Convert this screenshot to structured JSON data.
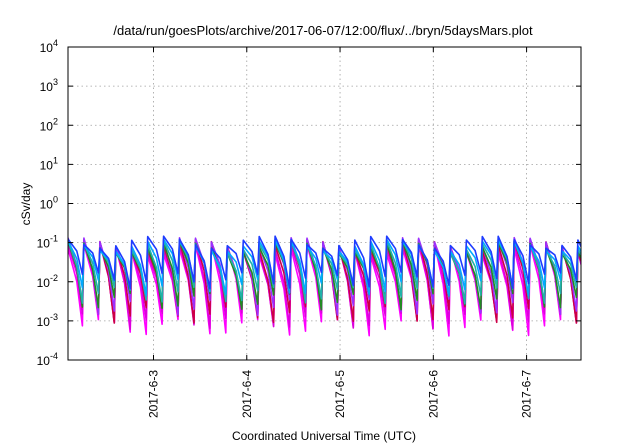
{
  "chart_data": {
    "type": "line",
    "title": "/data/run/goesPlots/archive/2017-06-07/12:00/flux/../bryn/5daysMars.plot",
    "xlabel": "Coordinated Universal Time (UTC)",
    "ylabel": "cSv/day",
    "yscale": "log",
    "ylim": [
      0.0001,
      10000
    ],
    "xlim": [
      "2017-06-02 02:00",
      "2017-06-07 14:00"
    ],
    "grid": true,
    "legend": "none",
    "y_ticks": [
      {
        "value": 0.0001,
        "base": "10",
        "exp": "-4"
      },
      {
        "value": 0.001,
        "base": "10",
        "exp": "-3"
      },
      {
        "value": 0.01,
        "base": "10",
        "exp": "-2"
      },
      {
        "value": 0.1,
        "base": "10",
        "exp": "-1"
      },
      {
        "value": 1,
        "base": "10",
        "exp": "0"
      },
      {
        "value": 10,
        "base": "10",
        "exp": "1"
      },
      {
        "value": 100,
        "base": "10",
        "exp": "2"
      },
      {
        "value": 1000,
        "base": "10",
        "exp": "3"
      },
      {
        "value": 10000,
        "base": "10",
        "exp": "4"
      }
    ],
    "x_ticks": [
      {
        "value": "2017-06-03 00:00",
        "label": "2017-6-3"
      },
      {
        "value": "2017-06-04 00:00",
        "label": "2017-6-4"
      },
      {
        "value": "2017-06-05 00:00",
        "label": "2017-6-5"
      },
      {
        "value": "2017-06-06 00:00",
        "label": "2017-6-6"
      },
      {
        "value": "2017-06-07 00:00",
        "label": "2017-6-7"
      }
    ],
    "pattern": {
      "description": "sawtooth: sharp rise at each peak, decay until next peak",
      "peak_interval_hours": 4.1,
      "first_peak": "2017-06-02 02:00",
      "series": [
        {
          "color": "#ff00ff",
          "peak": 0.07,
          "trough": 0.00075
        },
        {
          "color": "#dd00dd",
          "peak": 0.08,
          "trough": 0.0011
        },
        {
          "color": "#cc0044",
          "peak": 0.09,
          "trough": 0.0016
        },
        {
          "color": "#9b30ff",
          "peak": 0.1,
          "trough": 0.0025
        },
        {
          "color": "#228b22",
          "peak": 0.08,
          "trough": 0.0035
        },
        {
          "color": "#20b2aa",
          "peak": 0.085,
          "trough": 0.005
        },
        {
          "color": "#00aaff",
          "peak": 0.09,
          "trough": 0.008
        },
        {
          "color": "#1e3cff",
          "peak": 0.11,
          "trough": 0.012
        }
      ]
    }
  }
}
